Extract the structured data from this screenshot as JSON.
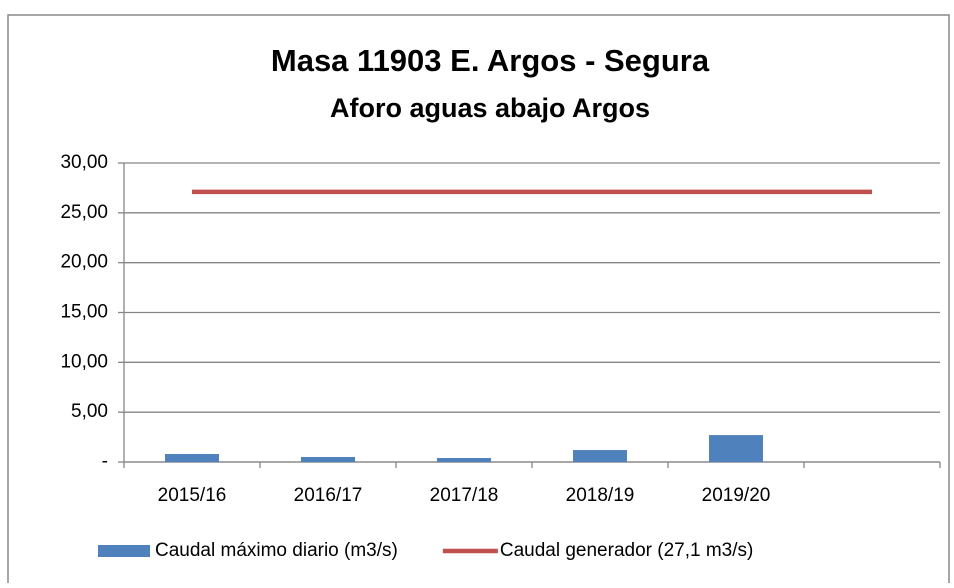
{
  "chart_data": {
    "type": "bar",
    "title": "Masa 11903 E. Argos - Segura",
    "subtitle": "Aforo aguas abajo Argos",
    "categories": [
      "2015/16",
      "2016/17",
      "2017/18",
      "2018/19",
      "2019/20",
      null
    ],
    "series": [
      {
        "name": "Caudal máximo diario (m3/s)",
        "type": "bar",
        "color": "#4f81bd",
        "values": [
          0.8,
          0.5,
          0.4,
          1.2,
          2.7,
          null
        ]
      },
      {
        "name": "Caudal generador (27,1 m3/s)",
        "type": "line",
        "color": "#c0504d",
        "values": [
          27.1,
          27.1,
          27.1,
          27.1,
          27.1,
          27.1
        ]
      }
    ],
    "ylim": [
      0,
      30
    ],
    "yticks": [
      {
        "value": 0,
        "label": "-"
      },
      {
        "value": 5,
        "label": "5,00"
      },
      {
        "value": 10,
        "label": "10,00"
      },
      {
        "value": 15,
        "label": "15,00"
      },
      {
        "value": 20,
        "label": "20,00"
      },
      {
        "value": 25,
        "label": "25,00"
      },
      {
        "value": 30,
        "label": "30,00"
      }
    ],
    "grid": true,
    "legend": "bottom"
  }
}
